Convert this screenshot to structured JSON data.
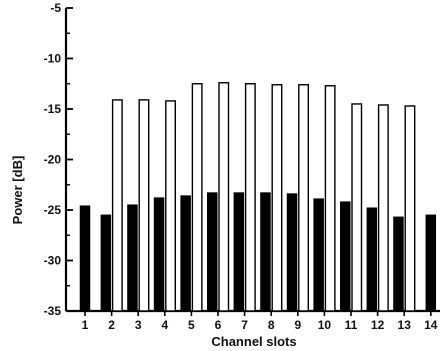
{
  "chart_data": {
    "type": "bar",
    "title": "",
    "xlabel": "Channel slots",
    "ylabel": "Power [dB]",
    "ylim": [
      -35,
      -5
    ],
    "yticks": [
      -5,
      -10,
      -15,
      -20,
      -25,
      -30,
      -35
    ],
    "ytick_labels": [
      "-5",
      "-10",
      "-15",
      "-20",
      "-25",
      "-30",
      "-35"
    ],
    "categories": [
      "1",
      "2",
      "3",
      "4",
      "5",
      "6",
      "7",
      "8",
      "9",
      "10",
      "11",
      "12",
      "13",
      "14"
    ],
    "series": [
      {
        "fill": "#ffffff",
        "values": [
          null,
          -14.1,
          -14.1,
          -14.2,
          -12.5,
          -12.4,
          -12.5,
          -12.6,
          -12.6,
          -12.7,
          -14.5,
          -14.6,
          -14.7,
          null
        ]
      },
      {
        "fill": "#000000",
        "values": [
          -24.6,
          -25.5,
          -24.5,
          -23.8,
          -23.6,
          -23.3,
          -23.3,
          -23.3,
          -23.4,
          -23.9,
          -24.2,
          -24.8,
          -25.7,
          -25.5
        ]
      }
    ],
    "grid": false,
    "legend": "none"
  }
}
